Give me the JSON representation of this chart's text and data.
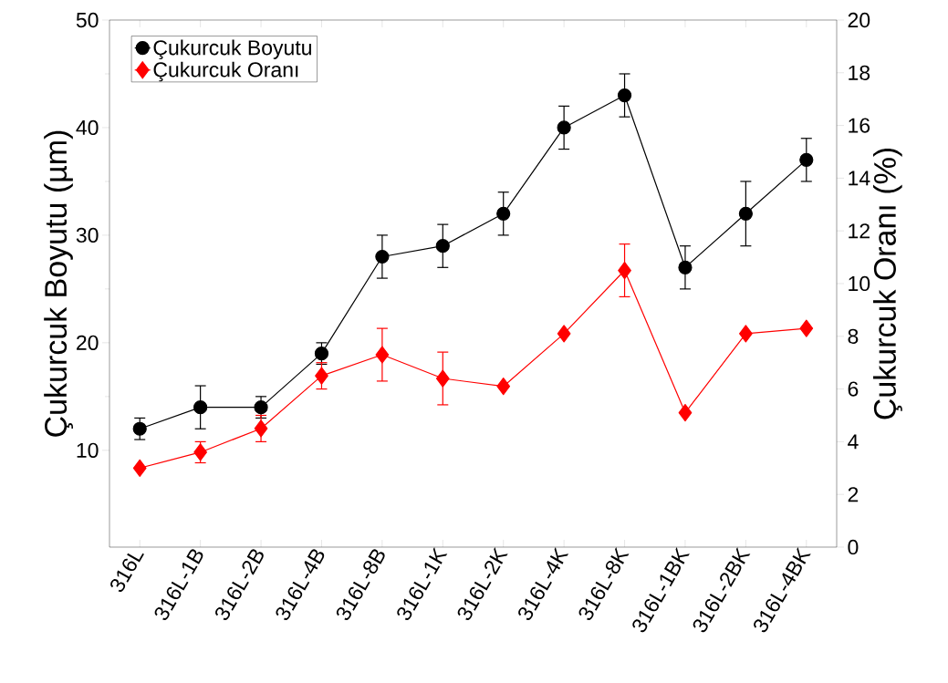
{
  "chart_data": {
    "type": "line",
    "ylabel": "Çukurcuk Boyutu (µm)",
    "y2label": "Çukurcuk Oranı (%)",
    "categories": [
      "316L",
      "316L-1B",
      "316L-2B",
      "316L-4B",
      "316L-8B",
      "316L-1K",
      "316L-2K",
      "316L-4K",
      "316L-8K",
      "316L-1BK",
      "316L-2BK",
      "316L-4BK"
    ],
    "series": [
      {
        "name": "Çukurcuk Boyutu",
        "color": "#000000",
        "marker": "circle",
        "values": [
          12,
          14,
          14,
          19,
          28,
          29,
          32,
          40,
          43,
          27,
          32,
          37
        ],
        "errors": [
          1,
          2,
          1,
          1,
          2,
          2,
          2,
          2,
          2,
          2,
          3,
          2
        ]
      },
      {
        "name": "Çukurcuk Oranı",
        "color": "#ff0000",
        "marker": "diamond",
        "axis": "y2",
        "values": [
          3.0,
          3.6,
          4.5,
          6.5,
          7.3,
          6.4,
          6.1,
          8.1,
          10.5,
          5.1,
          8.1,
          8.3
        ],
        "errors": [
          null,
          0.4,
          0.5,
          0.5,
          1.0,
          1.0,
          null,
          null,
          1.0,
          null,
          null,
          null
        ]
      }
    ],
    "ylim": [
      1,
      50
    ],
    "yticks": [
      10,
      20,
      30,
      40,
      50
    ],
    "y2lim": [
      0,
      20
    ],
    "y2ticks": [
      0,
      2,
      4,
      6,
      8,
      10,
      12,
      14,
      16,
      18,
      20
    ],
    "legend": "top left",
    "grid": false
  }
}
